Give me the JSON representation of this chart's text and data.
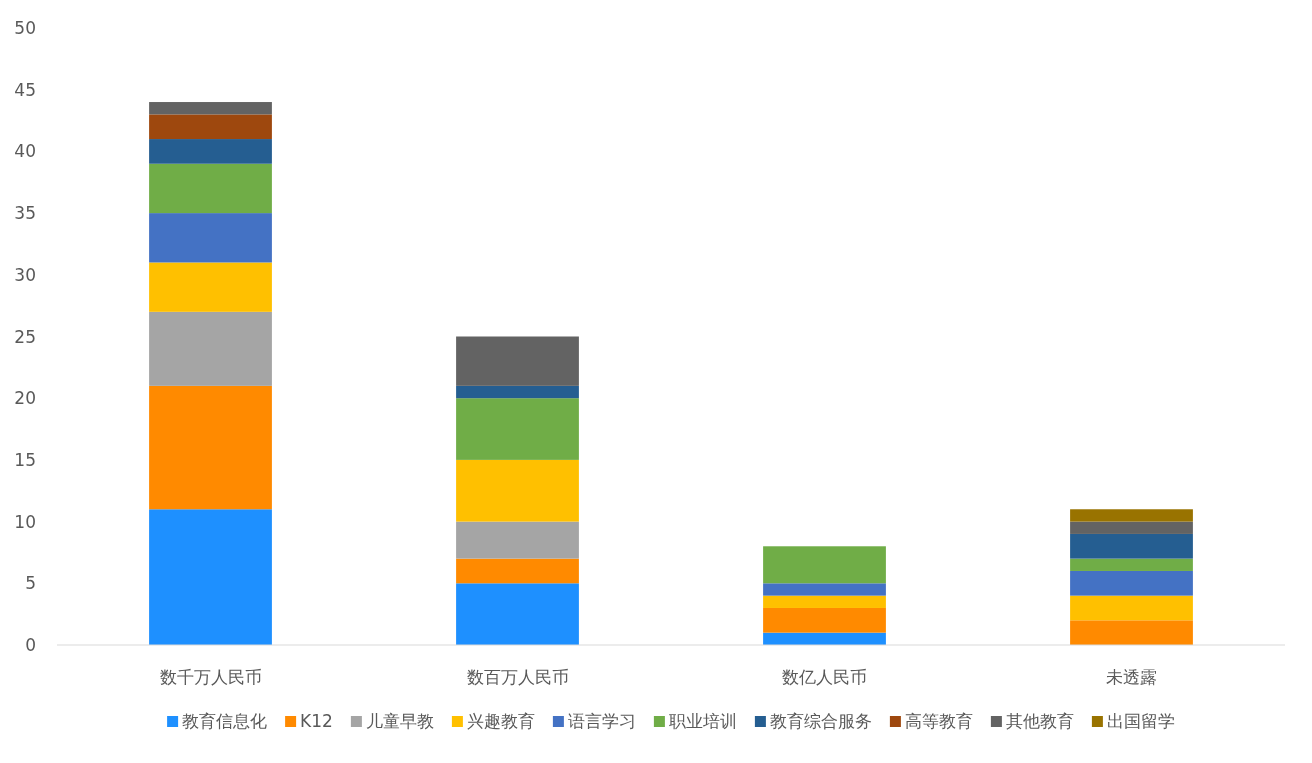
{
  "chart_data": {
    "type": "bar",
    "stacked": true,
    "categories": [
      "数千万人民币",
      "数百万人民币",
      "数亿人民币",
      "未透露"
    ],
    "ylim": [
      0,
      50
    ],
    "yticks": [
      0,
      5,
      10,
      15,
      20,
      25,
      30,
      35,
      40,
      45,
      50
    ],
    "grid": false,
    "legend": "bottom",
    "series": [
      {
        "name": "教育信息化",
        "color": "#1e90ff",
        "values": [
          11,
          5,
          1,
          0
        ]
      },
      {
        "name": "K12",
        "color": "#ff8a00",
        "values": [
          10,
          2,
          2,
          2
        ]
      },
      {
        "name": "儿童早教",
        "color": "#a5a5a5",
        "values": [
          6,
          3,
          0,
          0
        ]
      },
      {
        "name": "兴趣教育",
        "color": "#ffc000",
        "values": [
          4,
          5,
          1,
          2
        ]
      },
      {
        "name": "语言学习",
        "color": "#4472c4",
        "values": [
          4,
          0,
          1,
          2
        ]
      },
      {
        "name": "职业培训",
        "color": "#70ad47",
        "values": [
          4,
          5,
          3,
          1
        ]
      },
      {
        "name": "教育综合服务",
        "color": "#255e91",
        "values": [
          2,
          1,
          0,
          2
        ]
      },
      {
        "name": "高等教育",
        "color": "#9e480e",
        "values": [
          2,
          0,
          0,
          0
        ]
      },
      {
        "name": "其他教育",
        "color": "#636363",
        "values": [
          1,
          4,
          0,
          1
        ]
      },
      {
        "name": "出国留学",
        "color": "#997300",
        "values": [
          0,
          0,
          0,
          1
        ]
      }
    ]
  }
}
